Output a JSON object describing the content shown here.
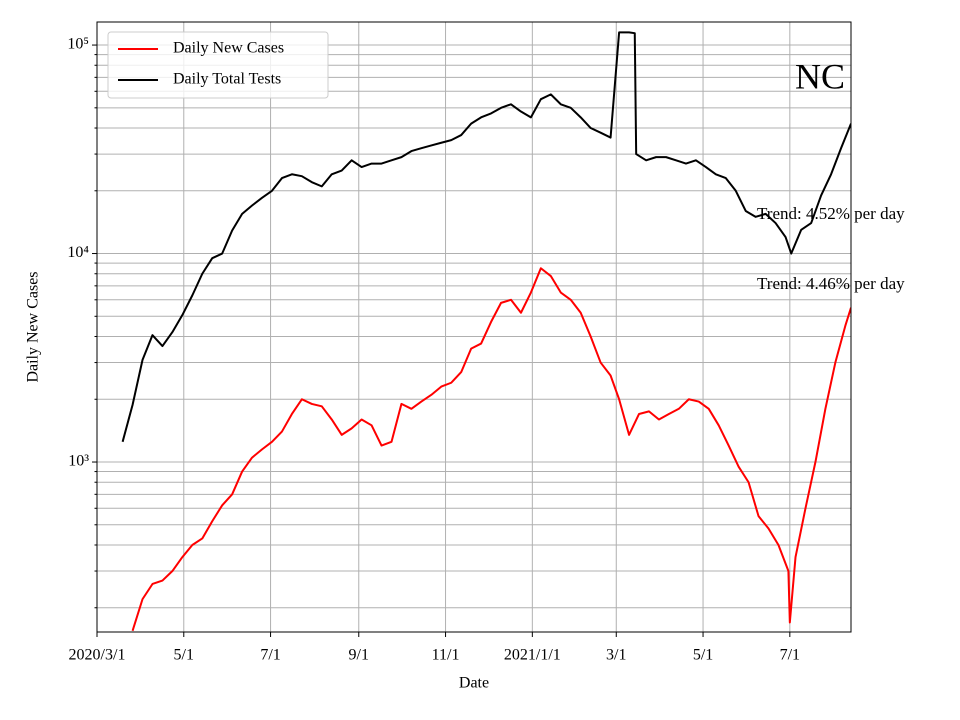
{
  "chart_data": {
    "type": "line",
    "title": "NC",
    "xlabel": "Date",
    "ylabel": "Daily New Cases",
    "log_y": true,
    "grid": true,
    "legend": "upper left",
    "xlim": [
      "2020-03-01",
      "2021-08-13"
    ],
    "xticks": [
      {
        "value": "2020-03-01",
        "label": "2020/3/1"
      },
      {
        "value": "2020-05-01",
        "label": "5/1"
      },
      {
        "value": "2020-07-01",
        "label": "7/1"
      },
      {
        "value": "2020-09-01",
        "label": "9/1"
      },
      {
        "value": "2020-11-01",
        "label": "11/1"
      },
      {
        "value": "2021-01-01",
        "label": "2021/1/1"
      },
      {
        "value": "2021-03-01",
        "label": "3/1"
      },
      {
        "value": "2021-05-01",
        "label": "5/1"
      },
      {
        "value": "2021-07-01",
        "label": "7/1"
      }
    ],
    "ylim": [
      153,
      129000
    ],
    "yticks": [
      {
        "value": 1000,
        "label": "10³"
      },
      {
        "value": 10000,
        "label": "10⁴"
      },
      {
        "value": 100000,
        "label": "10⁵"
      }
    ],
    "yticks_minor": [
      200,
      300,
      400,
      500,
      600,
      700,
      800,
      900,
      2000,
      3000,
      4000,
      5000,
      6000,
      7000,
      8000,
      9000,
      20000,
      30000,
      40000,
      50000,
      60000,
      70000,
      80000,
      90000
    ],
    "annotations": [
      "Trend: 4.52% per day",
      "Trend: 4.46% per day"
    ],
    "series": [
      {
        "name": "Daily New Cases",
        "color": "#ff0000",
        "x": [
          "2020-03-26",
          "2020-04-02",
          "2020-04-09",
          "2020-04-16",
          "2020-04-23",
          "2020-04-30",
          "2020-05-07",
          "2020-05-14",
          "2020-05-21",
          "2020-05-28",
          "2020-06-04",
          "2020-06-11",
          "2020-06-18",
          "2020-06-25",
          "2020-07-02",
          "2020-07-09",
          "2020-07-16",
          "2020-07-23",
          "2020-07-30",
          "2020-08-06",
          "2020-08-13",
          "2020-08-20",
          "2020-08-27",
          "2020-09-03",
          "2020-09-10",
          "2020-09-17",
          "2020-09-24",
          "2020-10-01",
          "2020-10-08",
          "2020-10-15",
          "2020-10-22",
          "2020-10-29",
          "2020-11-05",
          "2020-11-12",
          "2020-11-19",
          "2020-11-26",
          "2020-12-03",
          "2020-12-10",
          "2020-12-17",
          "2020-12-24",
          "2020-12-31",
          "2021-01-07",
          "2021-01-14",
          "2021-01-21",
          "2021-01-28",
          "2021-02-04",
          "2021-02-11",
          "2021-02-18",
          "2021-02-25",
          "2021-03-03",
          "2021-03-10",
          "2021-03-17",
          "2021-03-24",
          "2021-03-31",
          "2021-04-07",
          "2021-04-14",
          "2021-04-21",
          "2021-04-28",
          "2021-05-05",
          "2021-05-12",
          "2021-05-19",
          "2021-05-26",
          "2021-06-02",
          "2021-06-09",
          "2021-06-16",
          "2021-06-23",
          "2021-06-30",
          "2021-07-01",
          "2021-07-05",
          "2021-07-12",
          "2021-07-19",
          "2021-07-26",
          "2021-08-02",
          "2021-08-09",
          "2021-08-13"
        ],
        "values": [
          155,
          220,
          260,
          270,
          300,
          350,
          400,
          430,
          520,
          620,
          700,
          900,
          1050,
          1150,
          1250,
          1400,
          1700,
          2000,
          1900,
          1850,
          1600,
          1350,
          1450,
          1600,
          1500,
          1200,
          1250,
          1900,
          1800,
          1950,
          2100,
          2300,
          2400,
          2700,
          3500,
          3700,
          4700,
          5800,
          6000,
          5200,
          6500,
          8500,
          7800,
          6500,
          6000,
          5200,
          4000,
          3000,
          2600,
          2000,
          1350,
          1700,
          1750,
          1600,
          1700,
          1800,
          2000,
          1950,
          1800,
          1500,
          1200,
          950,
          800,
          550,
          480,
          400,
          300,
          170,
          350,
          600,
          1000,
          1800,
          3000,
          4500,
          5500
        ]
      },
      {
        "name": "Daily Total Tests",
        "color": "#000000",
        "x": [
          "2020-03-19",
          "2020-03-26",
          "2020-04-02",
          "2020-04-09",
          "2020-04-16",
          "2020-04-23",
          "2020-04-30",
          "2020-05-07",
          "2020-05-14",
          "2020-05-21",
          "2020-05-28",
          "2020-06-04",
          "2020-06-11",
          "2020-06-18",
          "2020-06-25",
          "2020-07-02",
          "2020-07-09",
          "2020-07-16",
          "2020-07-23",
          "2020-07-30",
          "2020-08-06",
          "2020-08-13",
          "2020-08-20",
          "2020-08-27",
          "2020-09-03",
          "2020-09-10",
          "2020-09-17",
          "2020-09-24",
          "2020-10-01",
          "2020-10-08",
          "2020-10-15",
          "2020-10-22",
          "2020-10-29",
          "2020-11-05",
          "2020-11-12",
          "2020-11-19",
          "2020-11-26",
          "2020-12-03",
          "2020-12-10",
          "2020-12-17",
          "2020-12-24",
          "2020-12-31",
          "2021-01-07",
          "2021-01-14",
          "2021-01-21",
          "2021-01-28",
          "2021-02-04",
          "2021-02-11",
          "2021-02-18",
          "2021-02-25",
          "2021-03-03",
          "2021-03-10",
          "2021-03-14",
          "2021-03-15",
          "2021-03-22",
          "2021-03-29",
          "2021-04-05",
          "2021-04-12",
          "2021-04-19",
          "2021-04-26",
          "2021-05-03",
          "2021-05-10",
          "2021-05-17",
          "2021-05-24",
          "2021-05-31",
          "2021-06-07",
          "2021-06-14",
          "2021-06-21",
          "2021-06-28",
          "2021-07-02",
          "2021-07-09",
          "2021-07-16",
          "2021-07-23",
          "2021-07-30",
          "2021-08-06",
          "2021-08-13"
        ],
        "values": [
          1250,
          1880,
          3090,
          4060,
          3600,
          4200,
          5070,
          6300,
          8000,
          9500,
          10000,
          12900,
          15500,
          17000,
          18500,
          20000,
          23000,
          24000,
          23500,
          22000,
          21000,
          24000,
          25000,
          28000,
          26000,
          27000,
          27000,
          28000,
          29000,
          31000,
          32000,
          33000,
          34000,
          35000,
          37000,
          42000,
          45000,
          47000,
          50000,
          52000,
          48000,
          45000,
          55000,
          58000,
          52000,
          50000,
          45000,
          40000,
          38000,
          36000,
          115000,
          115000,
          114000,
          30000,
          28000,
          29000,
          29000,
          28000,
          27000,
          28000,
          26000,
          24000,
          23000,
          20000,
          16000,
          15000,
          15500,
          14000,
          12000,
          10000,
          13000,
          14000,
          19000,
          24000,
          32000,
          42000
        ]
      }
    ]
  }
}
